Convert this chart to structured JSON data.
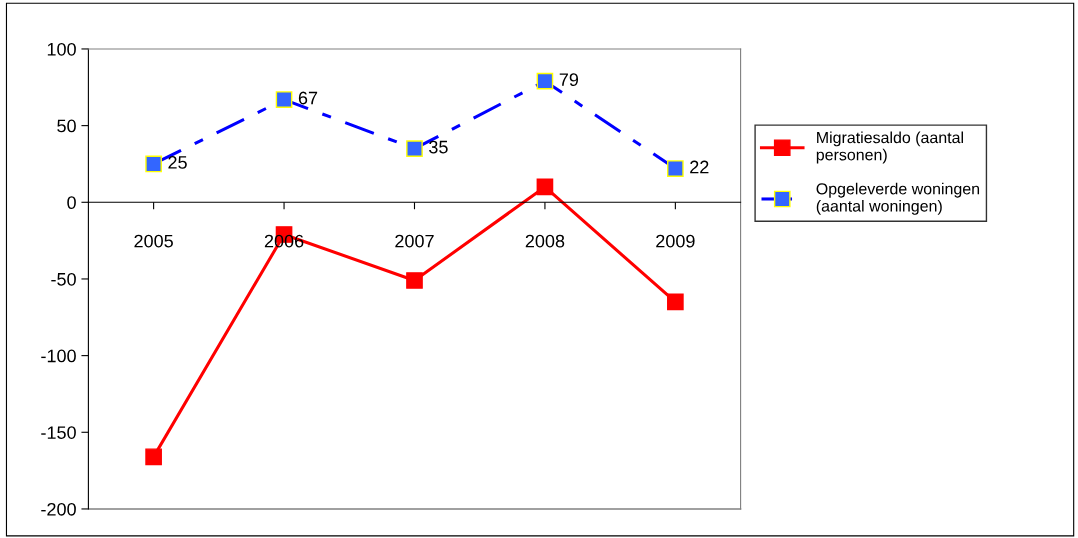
{
  "chart_data": {
    "type": "line",
    "categories": [
      "2005",
      "2006",
      "2007",
      "2008",
      "2009"
    ],
    "series": [
      {
        "name": "Migratiesaldo (aantal personen)",
        "color": "#ff0000",
        "values": [
          -166,
          -21,
          -51,
          10,
          -65
        ],
        "marker": "square",
        "line_style": "solid"
      },
      {
        "name": "Opgeleverde woningen (aantal woningen)",
        "color": "#0000ff",
        "values": [
          25,
          67,
          35,
          79,
          22
        ],
        "marker": "square",
        "line_style": "dashed",
        "value_labels": [
          "25",
          "67",
          "35",
          "79",
          "22"
        ]
      }
    ],
    "ylim": [
      -200,
      100
    ],
    "yticks": [
      -200,
      -150,
      -100,
      -50,
      0,
      50,
      100
    ],
    "grid": false,
    "legend": "right"
  }
}
